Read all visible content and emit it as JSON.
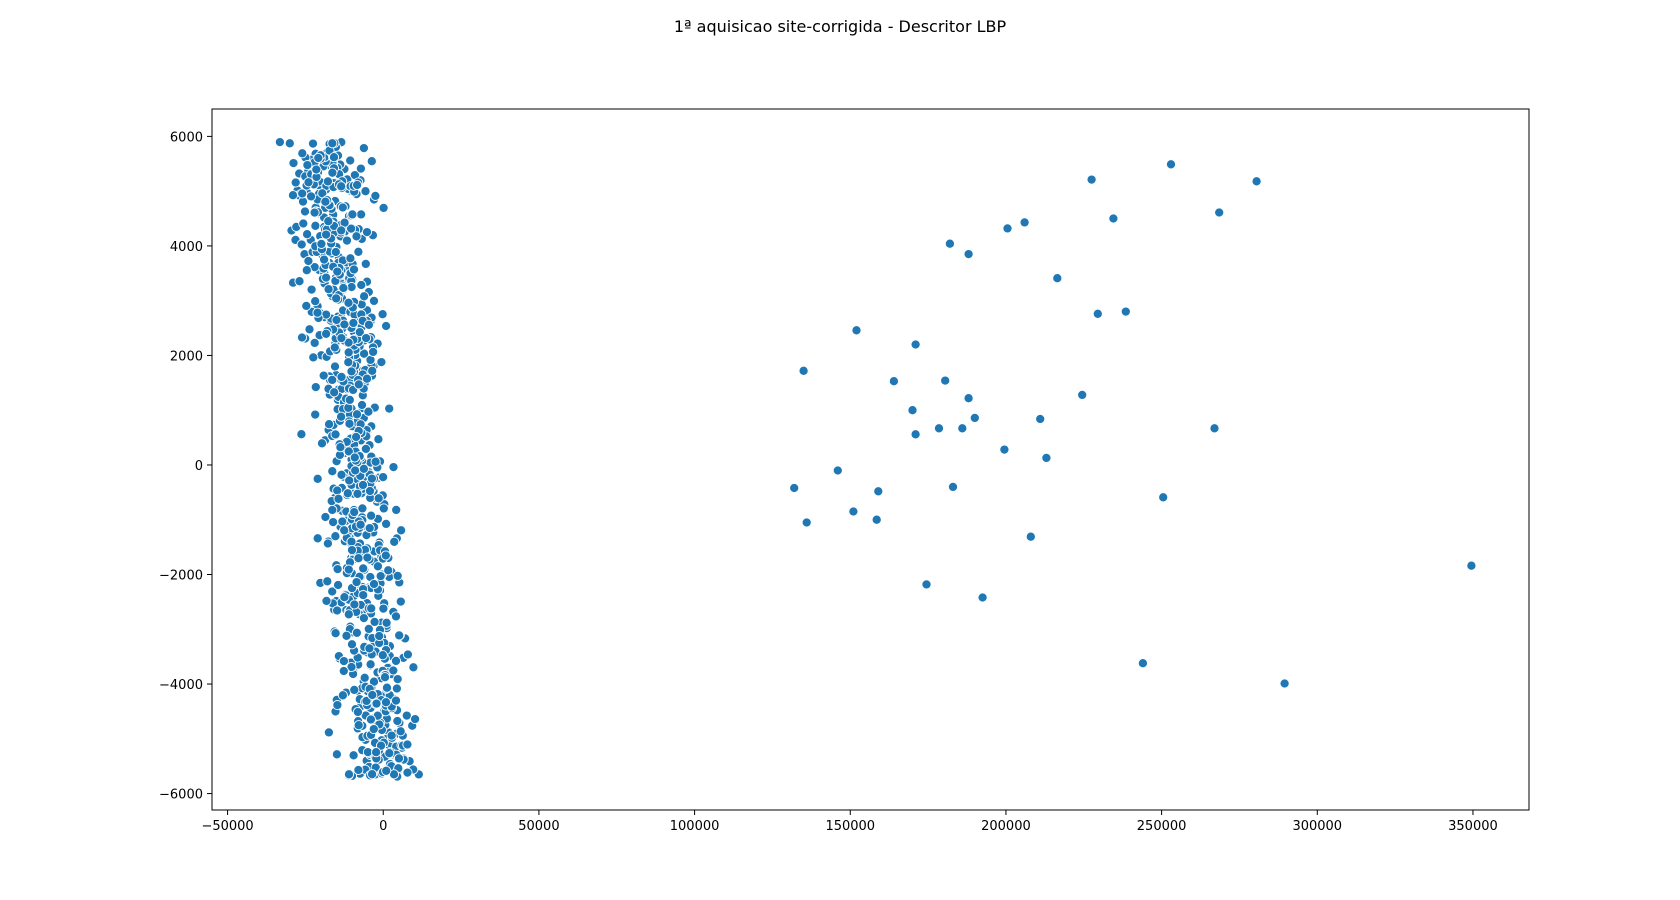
{
  "chart_data": {
    "type": "scatter",
    "title": "1ª aquisicao site-corrigida - Descritor LBP",
    "xlabel": "",
    "ylabel": "",
    "xlim": [
      -55000,
      368000
    ],
    "ylim": [
      -6300,
      6500
    ],
    "xticks": [
      -50000,
      0,
      50000,
      100000,
      150000,
      200000,
      250000,
      300000,
      350000
    ],
    "yticks": [
      -6000,
      -4000,
      -2000,
      0,
      2000,
      4000,
      6000
    ],
    "grid": false,
    "legend": "none",
    "marker_color": "#1f77b4",
    "marker_edge": "#ffffff",
    "cluster_main": {
      "description_only_for_generation": "dense cloud of points between x≈-35000 and x≈37000",
      "count": 900
    },
    "series": [
      {
        "values_x": [
          135000,
          132000,
          136000,
          146000,
          151000,
          152000,
          158500,
          159000,
          164000,
          170000,
          171000,
          171000,
          174500,
          178500,
          180500,
          182000,
          183000,
          186000,
          188000,
          188000,
          190000,
          192500,
          199500,
          200500,
          206000,
          208000,
          211000,
          213000,
          216500,
          224500,
          227500,
          229500,
          234500,
          238500,
          244000,
          250500,
          253000,
          267000,
          268500,
          280500,
          289500,
          349500
        ],
        "values_y": [
          1720,
          -420,
          -1050,
          -100,
          -850,
          2460,
          -1000,
          -480,
          1530,
          1000,
          560,
          2200,
          -2180,
          670,
          1540,
          4040,
          -400,
          670,
          1220,
          3850,
          860,
          -2420,
          280,
          4320,
          4430,
          -1310,
          840,
          130,
          3410,
          1280,
          5210,
          2760,
          4500,
          2800,
          -3620,
          -590,
          5490,
          670,
          4610,
          5180,
          -3990,
          -1840
        ]
      }
    ]
  }
}
